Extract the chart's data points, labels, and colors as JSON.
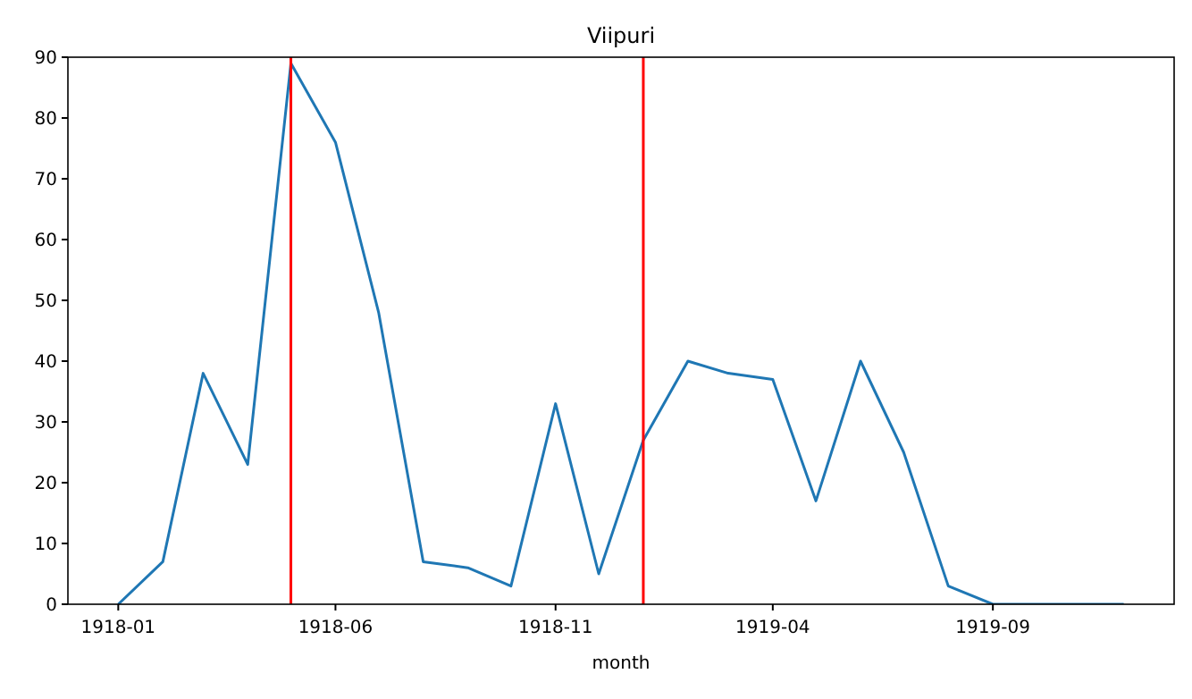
{
  "chart_data": {
    "type": "line",
    "title": "Viipuri",
    "xlabel": "month",
    "x": [
      "1918-01",
      "1918-02",
      "1918-03",
      "1918-04",
      "1918-05",
      "1918-06",
      "1918-07",
      "1918-08",
      "1918-09",
      "1918-10",
      "1918-11",
      "1918-12",
      "1919-01",
      "1919-02",
      "1919-03",
      "1919-04",
      "1919-05",
      "1919-06",
      "1919-07",
      "1919-08",
      "1919-09",
      "1919-10",
      "1919-11",
      "1919-12"
    ],
    "series": [
      {
        "color": "#1f77b4",
        "values": [
          0,
          7,
          38,
          23,
          89,
          76,
          48,
          7,
          6,
          3,
          33,
          5,
          27,
          40,
          38,
          37,
          17,
          40,
          25,
          3,
          0,
          0,
          0,
          0
        ]
      }
    ],
    "xlim": [
      "1917-11-27",
      "1920-01-05"
    ],
    "xticks": [
      "1918-01",
      "1918-06",
      "1918-11",
      "1919-04",
      "1919-09"
    ],
    "ylim": [
      0,
      90
    ],
    "yticks": [
      0,
      10,
      20,
      30,
      40,
      50,
      60,
      70,
      80,
      90
    ],
    "ref_lines": [
      {
        "axis": "x",
        "value": "1918-05",
        "color": "#ff0000"
      },
      {
        "axis": "x",
        "value": "1919-01",
        "color": "#ff0000"
      }
    ],
    "grid": false,
    "marker": "none",
    "line_style": "solid"
  }
}
